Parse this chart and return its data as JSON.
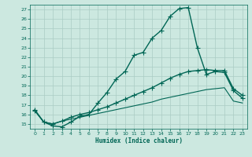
{
  "xlabel": "Humidex (Indice chaleur)",
  "background_color": "#cce8e0",
  "grid_color": "#aaccC4",
  "line_color": "#006655",
  "xlim": [
    -0.5,
    23.5
  ],
  "ylim": [
    14.5,
    27.5
  ],
  "xticks": [
    0,
    1,
    2,
    3,
    4,
    5,
    6,
    7,
    8,
    9,
    10,
    11,
    12,
    13,
    14,
    15,
    16,
    17,
    18,
    19,
    20,
    21,
    22,
    23
  ],
  "yticks": [
    15,
    16,
    17,
    18,
    19,
    20,
    21,
    22,
    23,
    24,
    25,
    26,
    27
  ],
  "series": [
    {
      "x": [
        0,
        1,
        2,
        3,
        4,
        5,
        6,
        7,
        8,
        9,
        10,
        11,
        12,
        13,
        14,
        15,
        16,
        17,
        18,
        19,
        20,
        21,
        22,
        23
      ],
      "y": [
        16.5,
        15.2,
        14.8,
        14.7,
        15.2,
        15.8,
        16.0,
        17.2,
        18.3,
        19.7,
        20.5,
        22.2,
        22.5,
        24.0,
        24.8,
        26.3,
        27.1,
        27.2,
        23.0,
        20.2,
        20.5,
        20.4,
        18.5,
        17.7
      ],
      "marker": "+",
      "linestyle": "-",
      "linewidth": 1.0,
      "markersize": 4
    },
    {
      "x": [
        0,
        1,
        2,
        3,
        4,
        5,
        6,
        7,
        8,
        9,
        10,
        11,
        12,
        13,
        14,
        15,
        16,
        17,
        18,
        19,
        20,
        21,
        22,
        23
      ],
      "y": [
        16.4,
        15.2,
        15.0,
        15.3,
        15.7,
        16.0,
        16.2,
        16.5,
        16.8,
        17.2,
        17.6,
        18.0,
        18.4,
        18.8,
        19.3,
        19.8,
        20.2,
        20.5,
        20.6,
        20.7,
        20.6,
        20.6,
        18.7,
        18.0
      ],
      "marker": "+",
      "linestyle": "-",
      "linewidth": 1.0,
      "markersize": 4
    },
    {
      "x": [
        0,
        1,
        2,
        3,
        4,
        5,
        6,
        7,
        8,
        9,
        10,
        11,
        12,
        13,
        14,
        15,
        16,
        17,
        18,
        19,
        20,
        21,
        22,
        23
      ],
      "y": [
        16.4,
        15.2,
        15.0,
        15.3,
        15.5,
        15.7,
        15.9,
        16.1,
        16.3,
        16.5,
        16.7,
        16.9,
        17.1,
        17.3,
        17.6,
        17.8,
        18.0,
        18.2,
        18.4,
        18.6,
        18.7,
        18.8,
        17.4,
        17.2
      ],
      "marker": null,
      "linestyle": "-",
      "linewidth": 0.8,
      "markersize": 0
    }
  ]
}
